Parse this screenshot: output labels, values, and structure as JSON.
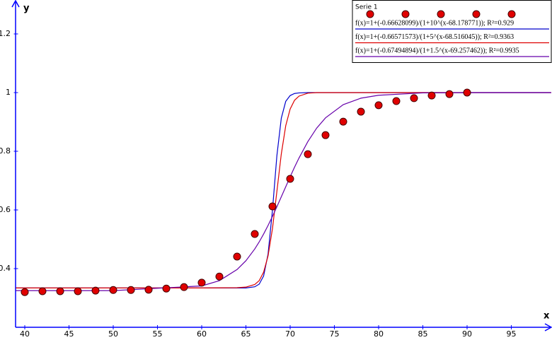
{
  "chart_data": {
    "type": "scatter",
    "xlabel": "x",
    "ylabel": "y",
    "xlim": [
      39,
      99.5
    ],
    "ylim": [
      0.2,
      1.31
    ],
    "xticks": [
      40,
      45,
      50,
      55,
      60,
      65,
      70,
      75,
      80,
      85,
      90,
      95
    ],
    "yticks": [
      0.4,
      0.6,
      0.8,
      1,
      1.2
    ],
    "legend": "top-right",
    "series": [
      {
        "name": "Serie 1",
        "type": "scatter",
        "color": "#e00000",
        "x": [
          40,
          42,
          44,
          46,
          48,
          50,
          52,
          54,
          56,
          58,
          60,
          62,
          64,
          66,
          68,
          70,
          72,
          74,
          76,
          78,
          80,
          82,
          84,
          86,
          88,
          90
        ],
        "values": [
          0.32,
          0.323,
          0.323,
          0.323,
          0.325,
          0.327,
          0.327,
          0.328,
          0.332,
          0.337,
          0.352,
          0.373,
          0.441,
          0.518,
          0.612,
          0.706,
          0.79,
          0.855,
          0.901,
          0.935,
          0.957,
          0.971,
          0.981,
          0.99,
          0.995,
          1.0
        ]
      },
      {
        "name": "f(x)=1+(-0.66628099)/(1+10^(x-68.178771)); R²=0.929",
        "type": "line",
        "color": "#0000cc",
        "x": [
          39,
          50,
          60,
          65,
          66,
          66.5,
          67,
          67.5,
          68,
          68.5,
          69,
          69.5,
          70,
          70.5,
          71,
          72,
          80,
          90,
          99.5
        ],
        "values": [
          0.334,
          0.334,
          0.334,
          0.334,
          0.338,
          0.347,
          0.375,
          0.449,
          0.599,
          0.785,
          0.913,
          0.97,
          0.99,
          0.997,
          0.999,
          1.0,
          1.0,
          1.0,
          1.0
        ]
      },
      {
        "name": "f(x)=1+(-0.66571573)/(1+5^(x-68.516045)); R²=0.9363",
        "type": "line",
        "color": "#dd0000",
        "x": [
          39,
          50,
          60,
          64,
          65,
          66,
          66.5,
          67,
          67.5,
          68,
          68.5,
          69,
          69.5,
          70,
          70.5,
          71,
          72,
          73,
          80,
          90,
          99.5
        ],
        "values": [
          0.334,
          0.334,
          0.334,
          0.335,
          0.337,
          0.346,
          0.359,
          0.388,
          0.443,
          0.536,
          0.663,
          0.791,
          0.887,
          0.944,
          0.974,
          0.988,
          0.998,
          1.0,
          1.0,
          1.0,
          1.0
        ]
      },
      {
        "name": "f(x)=1+(-0.67494894)/(1+1.5^(x-69.257462)); R²=0.9935",
        "type": "line",
        "color": "#6600aa",
        "x": [
          39,
          50,
          60,
          62,
          64,
          65,
          66,
          66.5,
          67,
          67.5,
          68,
          68.5,
          69,
          69.5,
          70,
          70.5,
          71,
          72,
          73,
          74,
          76,
          78,
          80,
          85,
          90,
          99.5
        ],
        "values": [
          0.325,
          0.325,
          0.341,
          0.359,
          0.397,
          0.427,
          0.467,
          0.491,
          0.518,
          0.547,
          0.578,
          0.611,
          0.645,
          0.679,
          0.713,
          0.746,
          0.777,
          0.833,
          0.879,
          0.914,
          0.959,
          0.981,
          0.991,
          0.999,
          1.0,
          1.0
        ]
      }
    ]
  }
}
